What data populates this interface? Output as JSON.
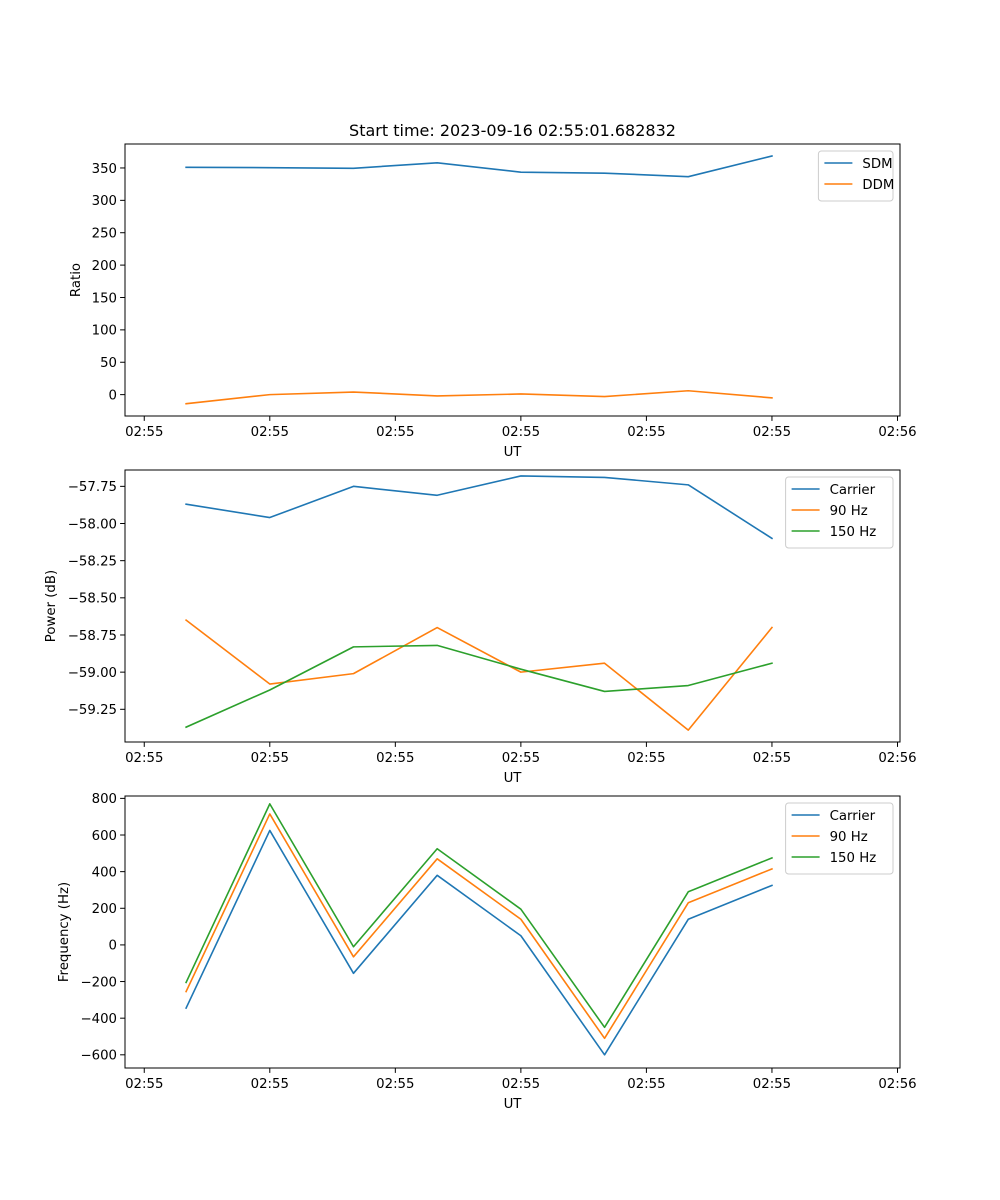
{
  "figure": {
    "title": "Start time: 2023-09-16 02:55:01.682832"
  },
  "colors": {
    "blue": "#1f77b4",
    "orange": "#ff7f0e",
    "green": "#2ca02c",
    "axis": "#000000",
    "legend_border": "#cccccc"
  },
  "chart_data": [
    {
      "type": "line",
      "xlabel": "UT",
      "ylabel": "Ratio",
      "x": [
        1,
        2,
        3,
        4,
        5,
        6,
        7,
        8
      ],
      "xlim": [
        0.27,
        9.53
      ],
      "x_ticks": [
        0.5,
        2.0,
        3.5,
        5.0,
        6.5,
        8.0,
        9.5
      ],
      "x_tick_labels": [
        "02:55",
        "02:55",
        "02:55",
        "02:55",
        "02:55",
        "02:55",
        "02:56"
      ],
      "ylim": [
        -33,
        387
      ],
      "y_ticks": [
        0,
        50,
        100,
        150,
        200,
        250,
        300,
        350
      ],
      "y_tick_labels": [
        "0",
        "50",
        "100",
        "150",
        "200",
        "250",
        "300",
        "350"
      ],
      "legend_position": "upper right",
      "series": [
        {
          "name": "SDM",
          "color": "#1f77b4",
          "values": [
            351,
            350.5,
            349.5,
            358,
            343.5,
            342,
            336.5,
            368.5
          ]
        },
        {
          "name": "DDM",
          "color": "#ff7f0e",
          "values": [
            -14,
            0,
            4,
            -2,
            1,
            -3,
            6,
            -5
          ]
        }
      ]
    },
    {
      "type": "line",
      "xlabel": "UT",
      "ylabel": "Power (dB)",
      "x": [
        1,
        2,
        3,
        4,
        5,
        6,
        7,
        8
      ],
      "xlim": [
        0.27,
        9.53
      ],
      "x_ticks": [
        0.5,
        2.0,
        3.5,
        5.0,
        6.5,
        8.0,
        9.5
      ],
      "x_tick_labels": [
        "02:55",
        "02:55",
        "02:55",
        "02:55",
        "02:55",
        "02:55",
        "02:56"
      ],
      "ylim": [
        -59.47,
        -57.64
      ],
      "y_ticks": [
        -57.75,
        -58.0,
        -58.25,
        -58.5,
        -58.75,
        -59.0,
        -59.25
      ],
      "y_tick_labels": [
        "−57.75",
        "−58.00",
        "−58.25",
        "−58.50",
        "−58.75",
        "−59.00",
        "−59.25"
      ],
      "legend_position": "upper right",
      "series": [
        {
          "name": "Carrier",
          "color": "#1f77b4",
          "values": [
            -57.87,
            -57.96,
            -57.75,
            -57.81,
            -57.68,
            -57.69,
            -57.74,
            -58.1
          ]
        },
        {
          "name": "90 Hz",
          "color": "#ff7f0e",
          "values": [
            -58.65,
            -59.08,
            -59.01,
            -58.7,
            -59.0,
            -58.94,
            -59.39,
            -58.7
          ]
        },
        {
          "name": "150 Hz",
          "color": "#2ca02c",
          "values": [
            -59.37,
            -59.12,
            -58.83,
            -58.82,
            -58.98,
            -59.13,
            -59.09,
            -58.94
          ]
        }
      ]
    },
    {
      "type": "line",
      "xlabel": "UT",
      "ylabel": "Frequency (Hz)",
      "x": [
        1,
        2,
        3,
        4,
        5,
        6,
        7,
        8
      ],
      "xlim": [
        0.27,
        9.53
      ],
      "x_ticks": [
        0.5,
        2.0,
        3.5,
        5.0,
        6.5,
        8.0,
        9.5
      ],
      "x_tick_labels": [
        "02:55",
        "02:55",
        "02:55",
        "02:55",
        "02:55",
        "02:55",
        "02:56"
      ],
      "ylim": [
        -672,
        813
      ],
      "y_ticks": [
        800,
        600,
        400,
        200,
        0,
        -200,
        -400,
        -600
      ],
      "y_tick_labels": [
        "800",
        "600",
        "400",
        "200",
        "0",
        "−200",
        "−400",
        "−600"
      ],
      "legend_position": "upper right",
      "series": [
        {
          "name": "Carrier",
          "color": "#1f77b4",
          "values": [
            -345,
            625,
            -155,
            380,
            50,
            -600,
            140,
            325
          ]
        },
        {
          "name": "90 Hz",
          "color": "#ff7f0e",
          "values": [
            -255,
            715,
            -65,
            470,
            140,
            -510,
            230,
            415
          ]
        },
        {
          "name": "150 Hz",
          "color": "#2ca02c",
          "values": [
            -205,
            770,
            -10,
            525,
            195,
            -450,
            290,
            475
          ]
        }
      ]
    }
  ]
}
